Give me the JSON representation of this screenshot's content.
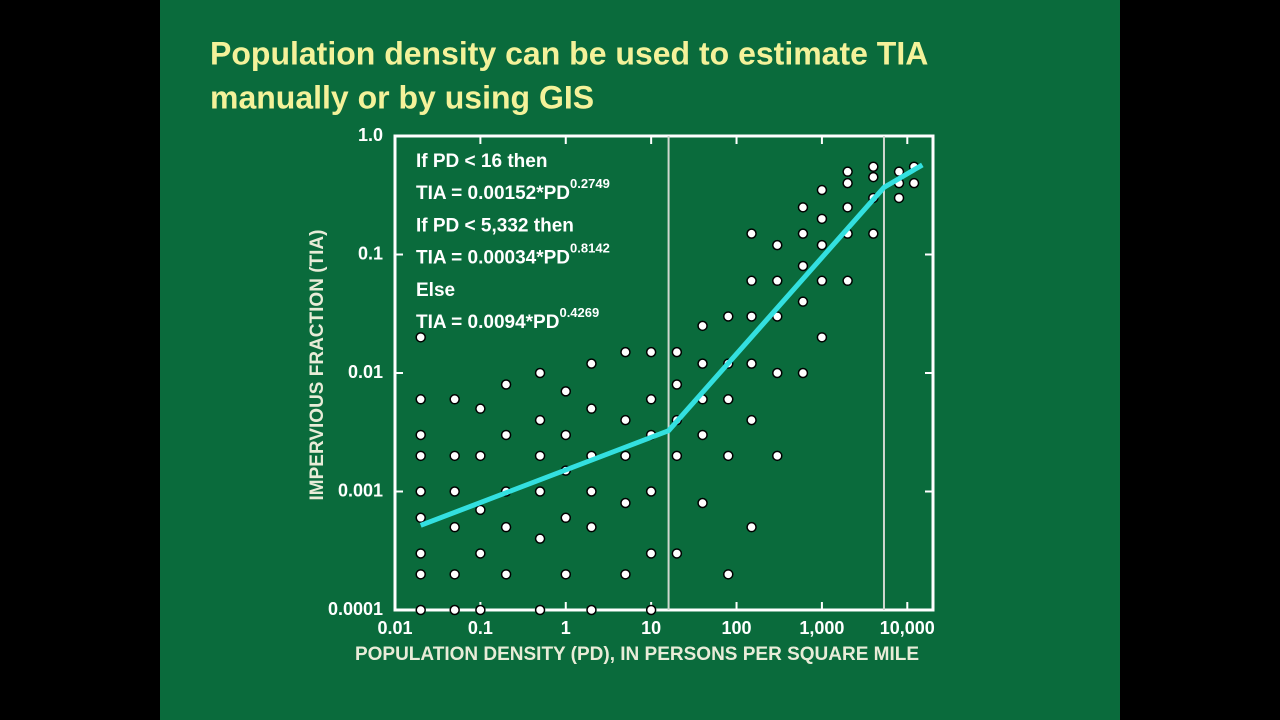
{
  "slide_title": [
    "Population density can be used to estimate TIA",
    "manually or by using GIS"
  ],
  "chart_data": {
    "type": "scatter",
    "x_label": "POPULATION DENSITY (PD), IN PERSONS PER SQUARE MILE",
    "y_label": "IMPERVIOUS FRACTION (TIA)",
    "xlog": true,
    "ylog": true,
    "xlim": [
      0.01,
      20000
    ],
    "ylim": [
      0.0001,
      1
    ],
    "xticks": [
      0.01,
      0.1,
      1,
      10,
      100,
      {
        "value": 1000,
        "label": "1,000"
      },
      {
        "value": 10000,
        "label": "10,000"
      }
    ],
    "yticks": [
      0.0001,
      0.001,
      0.01,
      0.1,
      {
        "value": 1,
        "label": "1.0"
      }
    ],
    "grid": false,
    "vlines": [
      16,
      5332
    ],
    "color": "#ffffff",
    "x": [
      0.02,
      0.02,
      0.02,
      0.02,
      0.02,
      0.02,
      0.02,
      0.02,
      0.02,
      0.05,
      0.05,
      0.05,
      0.05,
      0.05,
      0.05,
      0.1,
      0.1,
      0.1,
      0.1,
      0.1,
      0.2,
      0.2,
      0.2,
      0.2,
      0.2,
      0.5,
      0.5,
      0.5,
      0.5,
      0.5,
      0.5,
      1,
      1,
      1,
      1,
      1,
      2,
      2,
      2,
      2,
      2,
      2,
      5,
      5,
      5,
      5,
      5,
      10,
      10,
      10,
      10,
      10,
      10,
      20,
      20,
      20,
      20,
      20,
      40,
      40,
      40,
      40,
      40,
      80,
      80,
      80,
      80,
      80,
      150,
      150,
      150,
      150,
      150,
      150,
      300,
      300,
      300,
      300,
      300,
      600,
      600,
      600,
      600,
      600,
      1000,
      1000,
      1000,
      1000,
      1000,
      2000,
      2000,
      2000,
      2000,
      2000,
      4000,
      4000,
      4000,
      4000,
      8000,
      8000,
      8000,
      12000,
      12000
    ],
    "values": [
      0.0001,
      0.0002,
      0.0003,
      0.0006,
      0.001,
      0.002,
      0.003,
      0.006,
      0.02,
      0.0001,
      0.0002,
      0.0005,
      0.001,
      0.002,
      0.006,
      0.0001,
      0.0003,
      0.0007,
      0.002,
      0.005,
      0.0002,
      0.0005,
      0.001,
      0.003,
      0.008,
      0.0001,
      0.0004,
      0.001,
      0.002,
      0.004,
      0.01,
      0.0002,
      0.0006,
      0.0015,
      0.003,
      0.007,
      0.0001,
      0.0005,
      0.001,
      0.002,
      0.005,
      0.012,
      0.0002,
      0.0008,
      0.002,
      0.004,
      0.015,
      0.0001,
      0.0003,
      0.001,
      0.003,
      0.006,
      0.015,
      0.0003,
      0.002,
      0.004,
      0.008,
      0.015,
      0.0008,
      0.003,
      0.006,
      0.012,
      0.025,
      0.0002,
      0.002,
      0.006,
      0.012,
      0.03,
      0.0005,
      0.004,
      0.012,
      0.03,
      0.06,
      0.15,
      0.002,
      0.01,
      0.03,
      0.06,
      0.12,
      0.01,
      0.04,
      0.08,
      0.15,
      0.25,
      0.02,
      0.06,
      0.12,
      0.2,
      0.35,
      0.06,
      0.15,
      0.25,
      0.4,
      0.5,
      0.15,
      0.3,
      0.45,
      0.55,
      0.3,
      0.4,
      0.5,
      0.4,
      0.55
    ],
    "fit": {
      "color": "#33e0e0",
      "x": [
        0.02,
        16,
        5332,
        15000
      ],
      "values": [
        0.000518,
        0.00326,
        0.368,
        0.57
      ]
    },
    "annotations": [
      {
        "text": "If PD < 16 then"
      },
      {
        "text": "TIA = 0.00152*PD",
        "sup": "0.2749"
      },
      {
        "text": "If PD < 5,332 then"
      },
      {
        "text": "TIA = 0.00034*PD",
        "sup": "0.8142"
      },
      {
        "text": "Else"
      },
      {
        "text": "TIA = 0.0094*PD",
        "sup": "0.4269"
      }
    ]
  }
}
